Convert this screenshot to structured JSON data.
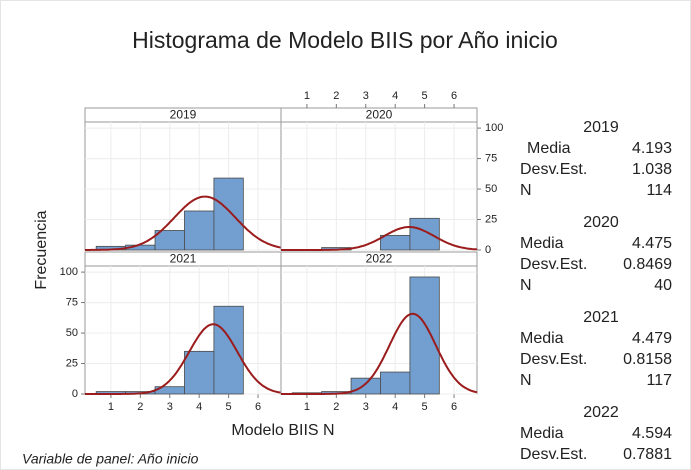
{
  "title": "Histograma de Modelo BIIS por Año inicio",
  "x_label": "Modelo BIIS N",
  "y_label": "Frecuencia",
  "footnote": "Variable de panel: Año inicio",
  "stat_labels": [
    "Media",
    "Desv.Est.",
    "N"
  ],
  "chart_data": [
    {
      "type": "histogram",
      "panel": "2019",
      "bins": [
        0.5,
        1.5,
        2.5,
        3.5,
        4.5,
        5.5
      ],
      "values": [
        3,
        4,
        16,
        32,
        59
      ],
      "color": "#729fcf",
      "curve_color": "#9b1c1c",
      "mean": 4.193,
      "sd": 1.038,
      "n": 114,
      "xlim": [
        0.12,
        6.78
      ],
      "ylim": [
        0,
        105
      ],
      "xticks": [
        1,
        2,
        3,
        4,
        5,
        6
      ],
      "yticks": [
        0,
        25,
        50,
        75,
        100
      ],
      "grid": true
    },
    {
      "type": "histogram",
      "panel": "2020",
      "bins": [
        0.5,
        1.5,
        2.5,
        3.5,
        4.5,
        5.5
      ],
      "values": [
        0,
        2,
        0,
        12,
        26
      ],
      "color": "#729fcf",
      "curve_color": "#9b1c1c",
      "mean": 4.475,
      "sd": 0.8469,
      "n": 40,
      "xlim": [
        0.12,
        6.78
      ],
      "ylim": [
        0,
        105
      ],
      "xticks": [
        1,
        2,
        3,
        4,
        5,
        6
      ],
      "yticks": [
        0,
        25,
        50,
        75,
        100
      ],
      "grid": true
    },
    {
      "type": "histogram",
      "panel": "2021",
      "bins": [
        0.5,
        1.5,
        2.5,
        3.5,
        4.5,
        5.5
      ],
      "values": [
        2,
        2,
        6,
        35,
        72
      ],
      "color": "#729fcf",
      "curve_color": "#9b1c1c",
      "mean": 4.479,
      "sd": 0.8158,
      "n": 117,
      "xlim": [
        0.12,
        6.78
      ],
      "ylim": [
        0,
        105
      ],
      "xticks": [
        1,
        2,
        3,
        4,
        5,
        6
      ],
      "yticks": [
        0,
        25,
        50,
        75,
        100
      ],
      "grid": true
    },
    {
      "type": "histogram",
      "panel": "2022",
      "bins": [
        0.5,
        1.5,
        2.5,
        3.5,
        4.5,
        5.5
      ],
      "values": [
        1,
        2,
        13,
        18,
        96
      ],
      "color": "#729fcf",
      "curve_color": "#9b1c1c",
      "mean": 4.594,
      "sd": 0.7881,
      "xlim": [
        0.12,
        6.78
      ],
      "ylim": [
        0,
        105
      ],
      "xticks": [
        1,
        2,
        3,
        4,
        5,
        6
      ],
      "yticks": [
        0,
        25,
        50,
        75,
        100
      ],
      "grid": true
    }
  ]
}
